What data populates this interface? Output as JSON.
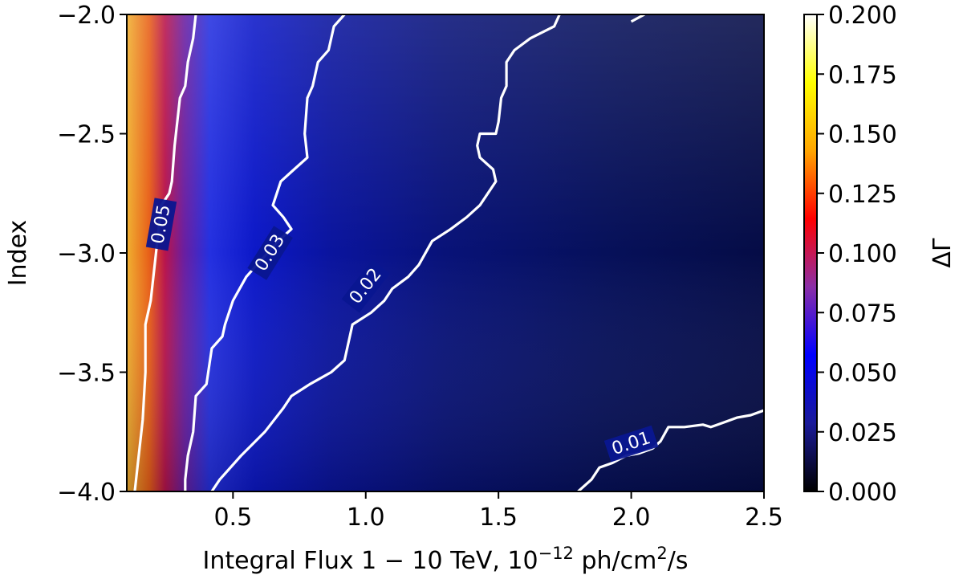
{
  "chart_data": {
    "type": "heatmap",
    "title": "",
    "xlabel": {
      "prefix": "Integral Flux 1 − 10 TeV, 10",
      "exponent": "−12",
      "middle": " ph/cm",
      "unit_exponent": "2",
      "suffix": "/s"
    },
    "ylabel": "Index",
    "xlim": [
      0.1,
      2.5
    ],
    "ylim": [
      -4.0,
      -2.0
    ],
    "x_ticks": [
      {
        "value": 0.5,
        "label": "0.5"
      },
      {
        "value": 1.0,
        "label": "1.0"
      },
      {
        "value": 1.5,
        "label": "1.5"
      },
      {
        "value": 2.0,
        "label": "2.0"
      },
      {
        "value": 2.5,
        "label": "2.5"
      }
    ],
    "y_ticks": [
      {
        "value": -2.0,
        "label": "−2.0"
      },
      {
        "value": -2.5,
        "label": "−2.5"
      },
      {
        "value": -3.0,
        "label": "−3.0"
      },
      {
        "value": -3.5,
        "label": "−3.5"
      },
      {
        "value": -4.0,
        "label": "−4.0"
      }
    ],
    "colorbar": {
      "label": "ΔΓ",
      "range": [
        0.0,
        0.2
      ],
      "colormap": [
        "#000000",
        "#1a1a99",
        "#0000ff",
        "#8b2fa8",
        "#ff0000",
        "#ffa500",
        "#ffff00",
        "#ffffff"
      ],
      "ticks": [
        {
          "value": 0.0,
          "label": "0.000"
        },
        {
          "value": 0.025,
          "label": "0.025"
        },
        {
          "value": 0.05,
          "label": "0.050"
        },
        {
          "value": 0.075,
          "label": "0.075"
        },
        {
          "value": 0.1,
          "label": "0.100"
        },
        {
          "value": 0.125,
          "label": "0.125"
        },
        {
          "value": 0.15,
          "label": "0.150"
        },
        {
          "value": 0.175,
          "label": "0.175"
        },
        {
          "value": 0.2,
          "label": "0.200"
        }
      ]
    },
    "contours": [
      {
        "level": 0.05,
        "label": "0.05",
        "label_at": {
          "x": 0.23,
          "y": -2.88,
          "angle": -80
        },
        "points": [
          [
            0.36,
            -2.0
          ],
          [
            0.35,
            -2.1
          ],
          [
            0.33,
            -2.2
          ],
          [
            0.32,
            -2.3
          ],
          [
            0.3,
            -2.35
          ],
          [
            0.29,
            -2.45
          ],
          [
            0.28,
            -2.55
          ],
          [
            0.27,
            -2.7
          ],
          [
            0.26,
            -2.75
          ],
          [
            0.23,
            -2.8
          ],
          [
            0.22,
            -2.9
          ],
          [
            0.21,
            -3.0
          ],
          [
            0.2,
            -3.1
          ],
          [
            0.19,
            -3.2
          ],
          [
            0.17,
            -3.3
          ],
          [
            0.17,
            -3.5
          ],
          [
            0.16,
            -3.7
          ],
          [
            0.14,
            -3.9
          ],
          [
            0.13,
            -4.0
          ]
        ]
      },
      {
        "level": 0.03,
        "label": "0.03",
        "label_at": {
          "x": 0.64,
          "y": -3.0,
          "angle": -58
        },
        "points": [
          [
            0.92,
            -2.0
          ],
          [
            0.88,
            -2.05
          ],
          [
            0.86,
            -2.15
          ],
          [
            0.82,
            -2.2
          ],
          [
            0.8,
            -2.3
          ],
          [
            0.78,
            -2.35
          ],
          [
            0.77,
            -2.5
          ],
          [
            0.78,
            -2.6
          ],
          [
            0.73,
            -2.65
          ],
          [
            0.68,
            -2.7
          ],
          [
            0.65,
            -2.8
          ],
          [
            0.69,
            -2.85
          ],
          [
            0.72,
            -2.9
          ],
          [
            0.67,
            -2.95
          ],
          [
            0.55,
            -3.1
          ],
          [
            0.5,
            -3.2
          ],
          [
            0.47,
            -3.3
          ],
          [
            0.46,
            -3.35
          ],
          [
            0.42,
            -3.4
          ],
          [
            0.4,
            -3.55
          ],
          [
            0.36,
            -3.6
          ],
          [
            0.35,
            -3.75
          ],
          [
            0.33,
            -3.85
          ],
          [
            0.32,
            -3.95
          ],
          [
            0.32,
            -4.0
          ]
        ]
      },
      {
        "level": 0.02,
        "label": "0.02",
        "label_at": {
          "x": 1.0,
          "y": -3.14,
          "angle": -52
        },
        "points": [
          [
            1.73,
            -2.0
          ],
          [
            1.71,
            -2.05
          ],
          [
            1.62,
            -2.1
          ],
          [
            1.56,
            -2.15
          ],
          [
            1.53,
            -2.2
          ],
          [
            1.53,
            -2.3
          ],
          [
            1.51,
            -2.35
          ],
          [
            1.5,
            -2.45
          ],
          [
            1.49,
            -2.5
          ],
          [
            1.43,
            -2.5
          ],
          [
            1.42,
            -2.55
          ],
          [
            1.43,
            -2.6
          ],
          [
            1.48,
            -2.65
          ],
          [
            1.49,
            -2.7
          ],
          [
            1.46,
            -2.75
          ],
          [
            1.43,
            -2.8
          ],
          [
            1.38,
            -2.85
          ],
          [
            1.32,
            -2.9
          ],
          [
            1.25,
            -2.95
          ],
          [
            1.2,
            -3.05
          ],
          [
            1.16,
            -3.1
          ],
          [
            1.1,
            -3.15
          ],
          [
            1.07,
            -3.2
          ],
          [
            1.02,
            -3.25
          ],
          [
            0.95,
            -3.3
          ],
          [
            0.93,
            -3.4
          ],
          [
            0.92,
            -3.45
          ],
          [
            0.87,
            -3.5
          ],
          [
            0.79,
            -3.55
          ],
          [
            0.72,
            -3.6
          ],
          [
            0.69,
            -3.65
          ],
          [
            0.62,
            -3.75
          ],
          [
            0.53,
            -3.85
          ],
          [
            0.45,
            -3.95
          ],
          [
            0.42,
            -4.0
          ]
        ]
      },
      {
        "level": 0.02,
        "label": "",
        "points": [
          [
            2.05,
            -2.0
          ],
          [
            2.0,
            -2.03
          ]
        ]
      },
      {
        "level": 0.01,
        "label": "0.01",
        "label_at": {
          "x": 2.0,
          "y": -3.8,
          "angle": -18
        },
        "points": [
          [
            1.8,
            -4.0
          ],
          [
            1.85,
            -3.95
          ],
          [
            1.88,
            -3.9
          ],
          [
            1.93,
            -3.88
          ],
          [
            1.98,
            -3.85
          ],
          [
            2.03,
            -3.84
          ],
          [
            2.08,
            -3.82
          ],
          [
            2.11,
            -3.79
          ],
          [
            2.14,
            -3.73
          ],
          [
            2.2,
            -3.73
          ],
          [
            2.27,
            -3.72
          ],
          [
            2.3,
            -3.73
          ],
          [
            2.35,
            -3.71
          ],
          [
            2.4,
            -3.69
          ],
          [
            2.45,
            -3.68
          ],
          [
            2.5,
            -3.66
          ]
        ]
      }
    ]
  }
}
